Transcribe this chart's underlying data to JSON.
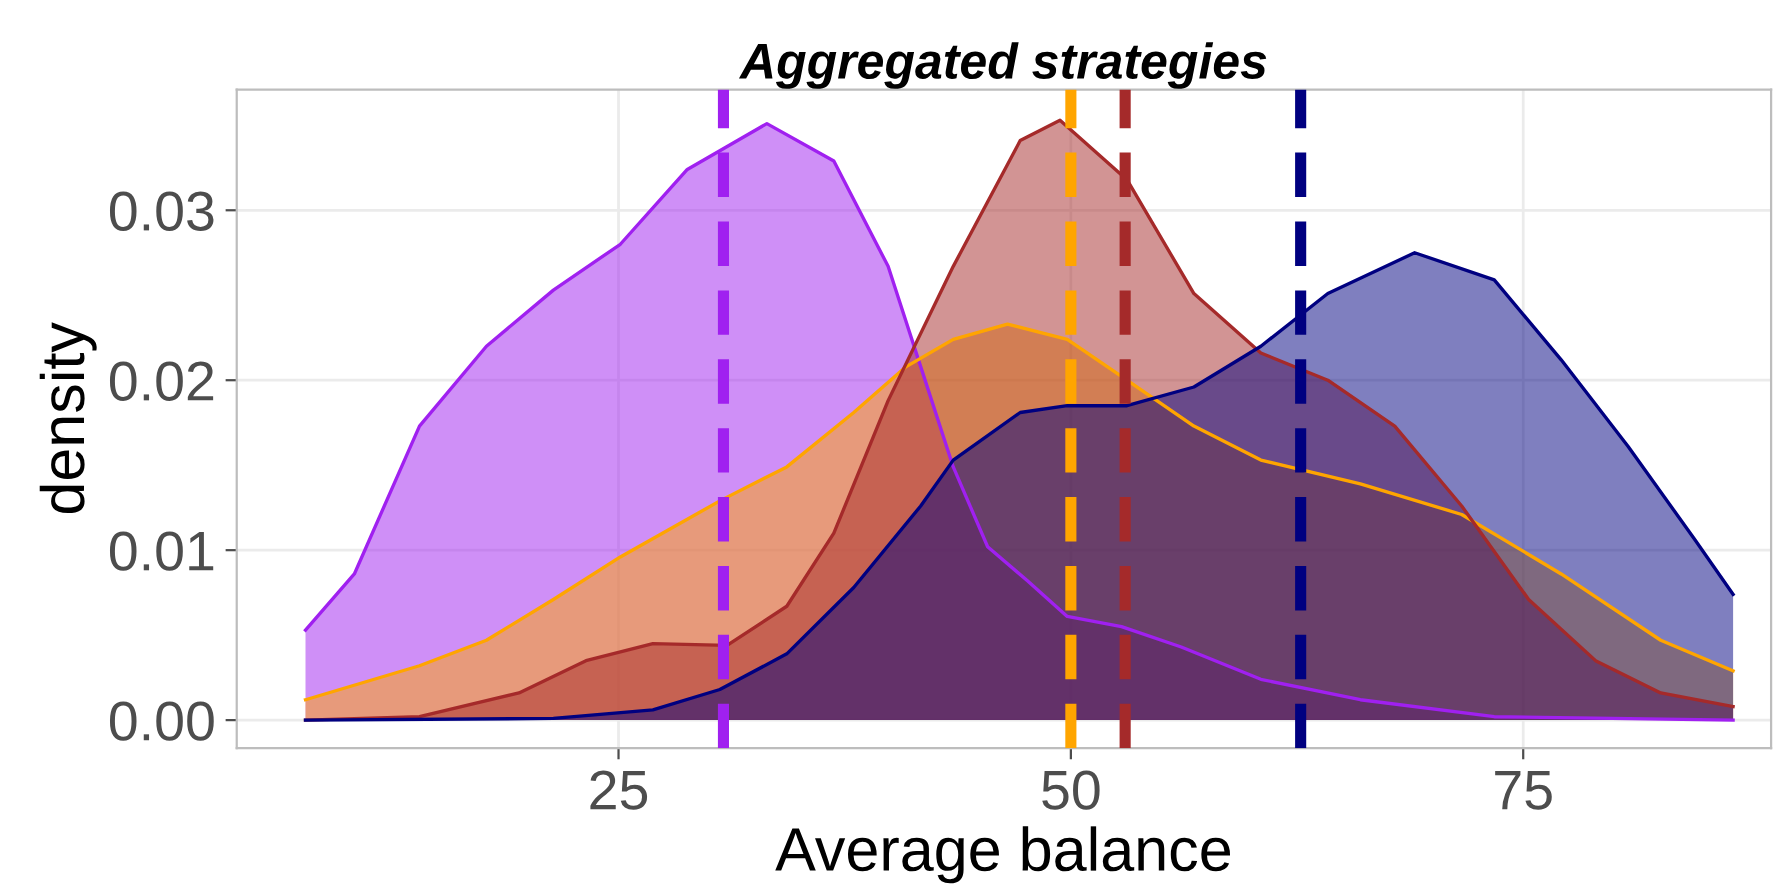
{
  "chart_data": {
    "type": "area",
    "title": "Aggregated strategies",
    "xlabel": "Average balance",
    "ylabel": "density",
    "xlim": [
      3.9,
      88.7
    ],
    "ylim": [
      -0.00165,
      0.0371
    ],
    "xticks": [
      25,
      50,
      75
    ],
    "yticks": [
      {
        "value": 0,
        "label": "0.00"
      },
      {
        "value": 0.01,
        "label": "0.01"
      },
      {
        "value": 0.02,
        "label": "0.02"
      },
      {
        "value": 0.03,
        "label": "0.03"
      }
    ],
    "grid": true,
    "series": [
      {
        "color": "#a020f0",
        "x": [
          7.7,
          10.4,
          14.0,
          17.7,
          21.4,
          25.1,
          28.8,
          33.2,
          36.9,
          39.9,
          41.7,
          43.5,
          45.4,
          47.6,
          49.8,
          52.8,
          56.1,
          60.5,
          66.0,
          73.4,
          86.6
        ],
        "values": [
          0.0053,
          0.0086,
          0.0173,
          0.022,
          0.0253,
          0.028,
          0.0324,
          0.0351,
          0.0329,
          0.0267,
          0.0208,
          0.0149,
          0.0102,
          0.0082,
          0.0061,
          0.0055,
          0.0043,
          0.0024,
          0.0012,
          0.0002,
          0.0
        ]
      },
      {
        "color": "#ffa500",
        "x": [
          7.7,
          14.0,
          17.7,
          21.4,
          25.1,
          30.6,
          34.3,
          38.0,
          40.9,
          43.5,
          46.5,
          49.8,
          53.1,
          56.8,
          60.5,
          66.0,
          71.6,
          77.1,
          82.6,
          86.6
        ],
        "values": [
          0.0012,
          0.0032,
          0.0047,
          0.0071,
          0.0096,
          0.0129,
          0.0149,
          0.0181,
          0.0208,
          0.0224,
          0.0233,
          0.0224,
          0.02,
          0.0173,
          0.0153,
          0.0139,
          0.0121,
          0.0086,
          0.0047,
          0.0029
        ]
      },
      {
        "color": "#a52a2a",
        "x": [
          7.7,
          14.0,
          19.5,
          23.2,
          26.9,
          31.0,
          34.3,
          36.9,
          39.9,
          43.5,
          47.2,
          49.4,
          53.1,
          56.8,
          60.5,
          64.2,
          67.9,
          71.6,
          75.3,
          79.0,
          82.6,
          86.6
        ],
        "values": [
          0.0,
          0.0002,
          0.0016,
          0.0035,
          0.0045,
          0.0044,
          0.0067,
          0.011,
          0.0188,
          0.0267,
          0.0341,
          0.0353,
          0.0318,
          0.0251,
          0.0216,
          0.02,
          0.0173,
          0.0126,
          0.0071,
          0.0035,
          0.0016,
          0.0008
        ]
      },
      {
        "color": "#000080",
        "x": [
          7.7,
          21.4,
          26.9,
          30.6,
          34.3,
          38.0,
          41.7,
          43.5,
          47.2,
          49.8,
          53.1,
          56.8,
          60.5,
          64.2,
          69.0,
          73.4,
          77.1,
          80.8,
          84.5,
          86.6
        ],
        "values": [
          0.0,
          0.0001,
          0.0006,
          0.0018,
          0.0039,
          0.0078,
          0.0126,
          0.0153,
          0.0181,
          0.0185,
          0.0185,
          0.0196,
          0.022,
          0.0251,
          0.0275,
          0.0259,
          0.0212,
          0.0161,
          0.0106,
          0.0074
        ]
      }
    ],
    "ref_lines": [
      {
        "axis": "x",
        "value": 30.8,
        "color": "#a020f0",
        "line_style": "dashed"
      },
      {
        "axis": "x",
        "value": 50.0,
        "color": "#ffa500",
        "line_style": "dashed"
      },
      {
        "axis": "x",
        "value": 53.0,
        "color": "#a52a2a",
        "line_style": "dashed"
      },
      {
        "axis": "x",
        "value": 62.7,
        "color": "#000080",
        "line_style": "dashed"
      }
    ]
  }
}
